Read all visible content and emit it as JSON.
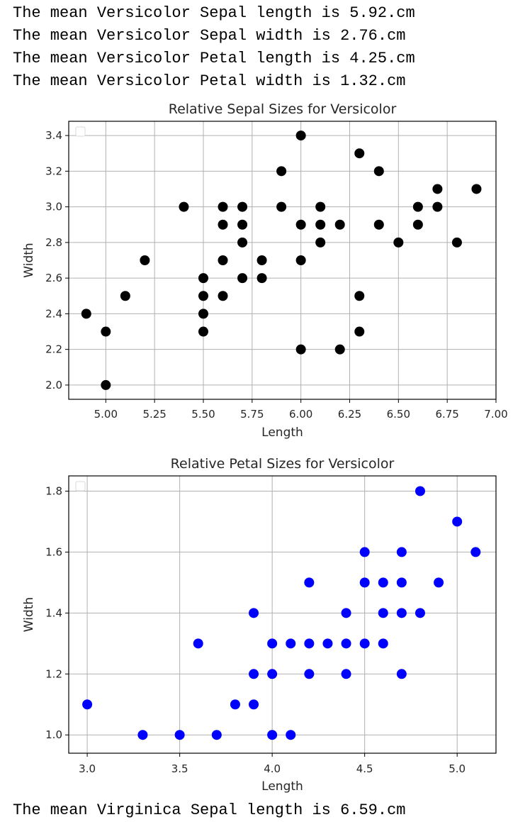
{
  "output": {
    "lines": [
      "The mean Versicolor Sepal length is 5.92.cm",
      "The mean Versicolor Sepal width is 2.76.cm",
      "The mean Versicolor Petal length is 4.25.cm",
      "The mean Versicolor Petal width is 1.32.cm"
    ],
    "trailing_line": "The mean Virginica Sepal length is 6.59.cm"
  },
  "chart_data": [
    {
      "type": "scatter",
      "title": "Relative Sepal Sizes for Versicolor",
      "xlabel": "Length",
      "ylabel": "Width",
      "xlim": [
        4.81,
        7.0
      ],
      "ylim": [
        1.92,
        3.48
      ],
      "xticks": [
        "5.00",
        "5.25",
        "5.50",
        "5.75",
        "6.00",
        "6.25",
        "6.50",
        "6.75",
        "7.00"
      ],
      "yticks": [
        "2.0",
        "2.2",
        "2.4",
        "2.6",
        "2.8",
        "3.0",
        "3.2",
        "3.4"
      ],
      "grid": true,
      "legend": "top-left (empty)",
      "color": "#000000",
      "points": [
        [
          4.9,
          2.4
        ],
        [
          5.0,
          2.3
        ],
        [
          5.0,
          2.0
        ],
        [
          5.1,
          2.5
        ],
        [
          5.2,
          2.7
        ],
        [
          5.4,
          3.0
        ],
        [
          5.5,
          2.6
        ],
        [
          5.5,
          2.5
        ],
        [
          5.5,
          2.4
        ],
        [
          5.5,
          2.3
        ],
        [
          5.6,
          3.0
        ],
        [
          5.6,
          2.9
        ],
        [
          5.6,
          2.7
        ],
        [
          5.6,
          2.5
        ],
        [
          5.7,
          3.0
        ],
        [
          5.7,
          2.9
        ],
        [
          5.7,
          2.8
        ],
        [
          5.7,
          2.6
        ],
        [
          5.8,
          2.7
        ],
        [
          5.8,
          2.6
        ],
        [
          5.9,
          3.2
        ],
        [
          5.9,
          3.0
        ],
        [
          6.0,
          3.4
        ],
        [
          6.0,
          2.9
        ],
        [
          6.0,
          2.7
        ],
        [
          6.0,
          2.2
        ],
        [
          6.1,
          3.0
        ],
        [
          6.1,
          2.9
        ],
        [
          6.1,
          2.8
        ],
        [
          6.2,
          2.9
        ],
        [
          6.2,
          2.2
        ],
        [
          6.3,
          3.3
        ],
        [
          6.3,
          2.5
        ],
        [
          6.3,
          2.3
        ],
        [
          6.4,
          3.2
        ],
        [
          6.4,
          2.9
        ],
        [
          6.5,
          2.8
        ],
        [
          6.6,
          3.0
        ],
        [
          6.6,
          2.9
        ],
        [
          6.7,
          3.1
        ],
        [
          6.7,
          3.0
        ],
        [
          6.8,
          2.8
        ],
        [
          6.9,
          3.1
        ]
      ]
    },
    {
      "type": "scatter",
      "title": "Relative Petal Sizes for Versicolor",
      "xlabel": "Length",
      "ylabel": "Width",
      "xlim": [
        2.9,
        5.21
      ],
      "ylim": [
        0.94,
        1.85
      ],
      "xticks": [
        "3.0",
        "3.5",
        "4.0",
        "4.5",
        "5.0"
      ],
      "yticks": [
        "1.0",
        "1.2",
        "1.4",
        "1.6",
        "1.8"
      ],
      "grid": true,
      "legend": "top-left (empty)",
      "color": "#0000ff",
      "points": [
        [
          3.0,
          1.1
        ],
        [
          3.3,
          1.0
        ],
        [
          3.5,
          1.0
        ],
        [
          3.6,
          1.3
        ],
        [
          3.7,
          1.0
        ],
        [
          3.8,
          1.1
        ],
        [
          3.9,
          1.4
        ],
        [
          3.9,
          1.2
        ],
        [
          3.9,
          1.1
        ],
        [
          4.0,
          1.3
        ],
        [
          4.0,
          1.2
        ],
        [
          4.0,
          1.0
        ],
        [
          4.1,
          1.3
        ],
        [
          4.1,
          1.0
        ],
        [
          4.2,
          1.5
        ],
        [
          4.2,
          1.3
        ],
        [
          4.2,
          1.2
        ],
        [
          4.3,
          1.3
        ],
        [
          4.4,
          1.4
        ],
        [
          4.4,
          1.3
        ],
        [
          4.4,
          1.2
        ],
        [
          4.5,
          1.6
        ],
        [
          4.5,
          1.5
        ],
        [
          4.5,
          1.3
        ],
        [
          4.6,
          1.5
        ],
        [
          4.6,
          1.4
        ],
        [
          4.6,
          1.3
        ],
        [
          4.7,
          1.6
        ],
        [
          4.7,
          1.5
        ],
        [
          4.7,
          1.4
        ],
        [
          4.7,
          1.2
        ],
        [
          4.8,
          1.8
        ],
        [
          4.8,
          1.4
        ],
        [
          4.9,
          1.5
        ],
        [
          5.0,
          1.7
        ],
        [
          5.1,
          1.6
        ]
      ]
    }
  ]
}
